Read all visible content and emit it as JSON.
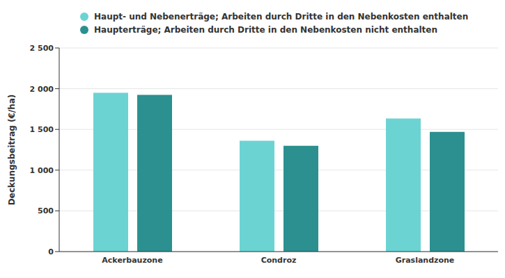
{
  "chart_data": {
    "type": "bar",
    "categories": [
      "Ackerbauzone",
      "Condroz",
      "Graslandzone"
    ],
    "series": [
      {
        "name": "Haupt- und Nebenerträge; Arbeiten durch Dritte in den Nebenkosten enthalten",
        "color": "#6cd3d3",
        "values": [
          1950,
          1360,
          1635
        ]
      },
      {
        "name": "Haupterträge; Arbeiten durch Dritte in den Nebenkosten nicht enthalten",
        "color": "#2b908f",
        "values": [
          1925,
          1300,
          1470
        ]
      }
    ],
    "y_label": "Deckungsbeitrag (€/ha)",
    "ylim": [
      0,
      2500
    ],
    "yticks": [
      0,
      500,
      {
        "value": 1000,
        "label": "1 000"
      },
      {
        "value": 1500,
        "label": "1 500"
      },
      {
        "value": 2000,
        "label": "2 000"
      },
      {
        "value": 2500,
        "label": "2 500"
      }
    ],
    "grid": true,
    "legend": "top-left"
  }
}
